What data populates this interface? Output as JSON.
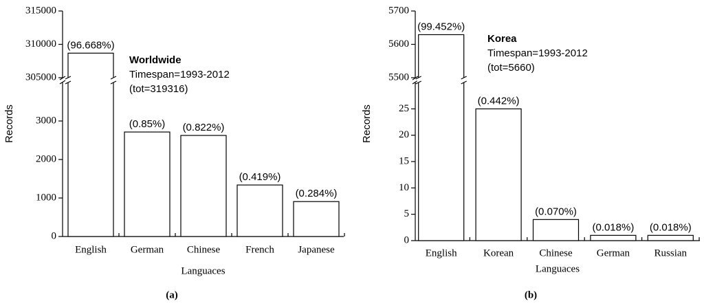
{
  "chart_data": [
    {
      "type": "bar",
      "panel_label": "(a)",
      "ylabel": "Records",
      "xlabel": "Languaces",
      "annotations": [
        "Worldwide",
        "Timespan=1993-2012",
        "(tot=319316)"
      ],
      "categories": [
        "English",
        "German",
        "Chinese",
        "French",
        "Japanese"
      ],
      "values": [
        308680,
        2714,
        2625,
        1338,
        907
      ],
      "shares": [
        {
          "value": 96.668,
          "label": "(96.668%)"
        },
        {
          "value": 0.85,
          "label": "(0.85%)"
        },
        {
          "value": 0.822,
          "label": "(0.822%)"
        },
        {
          "value": 0.419,
          "label": "(0.419%)"
        },
        {
          "value": 0.284,
          "label": "(0.284%)"
        }
      ],
      "color": "#ffffff",
      "y_segments": [
        {
          "ylim": [
            0,
            4000
          ],
          "yticks": [
            0,
            1000,
            2000,
            3000
          ]
        },
        {
          "ylim": [
            305000,
            315000
          ],
          "yticks": [
            305000,
            310000,
            315000
          ]
        }
      ]
    },
    {
      "type": "bar",
      "panel_label": "(b)",
      "ylabel": "Records",
      "xlabel": "Languaces",
      "annotations": [
        "Korea",
        "Timespan=1993-2012",
        "(tot=5660)"
      ],
      "categories": [
        "English",
        "Korean",
        "Chinese",
        "German",
        "Russian"
      ],
      "values": [
        5629,
        25,
        4,
        1,
        1
      ],
      "shares": [
        {
          "value": 99.452,
          "label": "(99.452%)"
        },
        {
          "value": 0.442,
          "label": "(0.442%)"
        },
        {
          "value": 0.07,
          "label": "(0.070%)"
        },
        {
          "value": 0.018,
          "label": "(0.018%)"
        },
        {
          "value": 0.018,
          "label": "(0.018%)"
        }
      ],
      "color": "#ffffff",
      "y_segments": [
        {
          "ylim": [
            0,
            30
          ],
          "yticks": [
            0,
            5,
            10,
            15,
            20,
            25
          ]
        },
        {
          "ylim": [
            5500,
            5700
          ],
          "yticks": [
            5500,
            5600,
            5700
          ]
        }
      ]
    }
  ]
}
